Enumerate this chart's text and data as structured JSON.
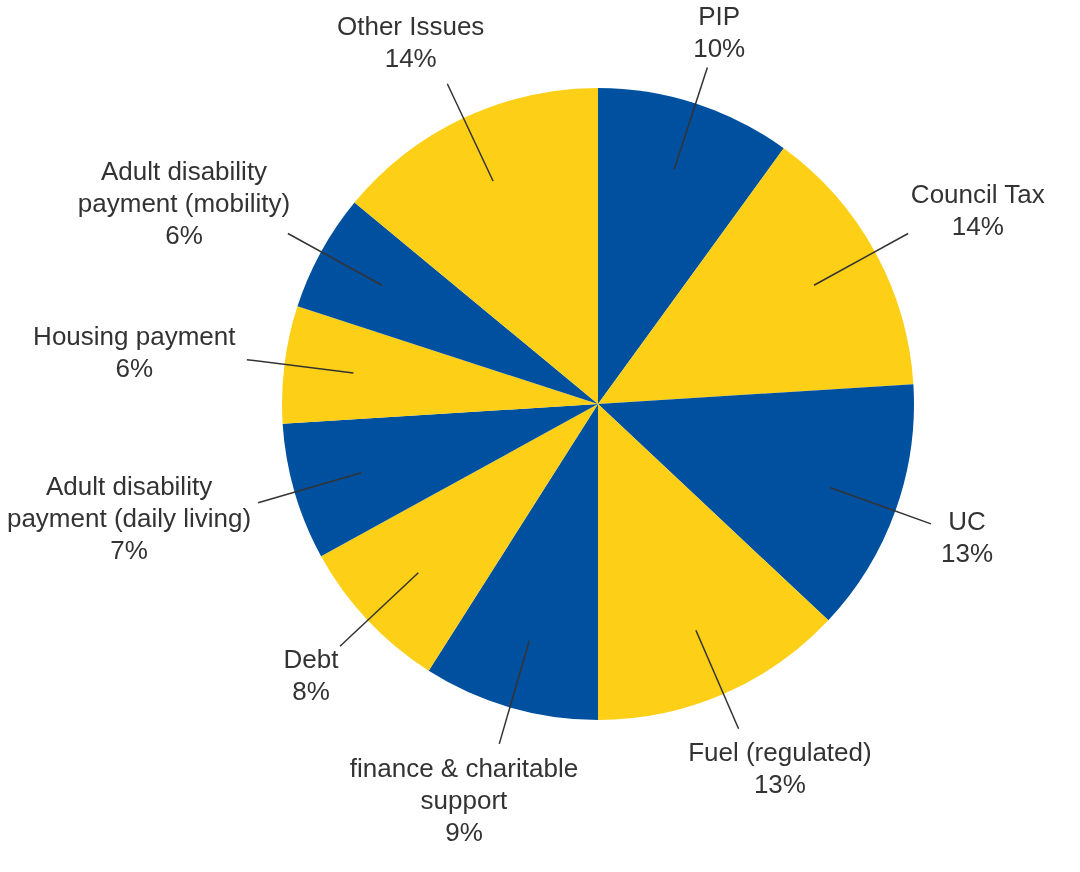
{
  "chart_data": {
    "type": "pie",
    "categories": [
      "PIP",
      "Council Tax",
      "UC",
      "Fuel (regulated)",
      "finance & charitable support",
      "Debt",
      "Adult disability payment (daily living)",
      "Housing payment",
      "Adult disability payment (mobility)",
      "Other Issues"
    ],
    "values": [
      10,
      14,
      13,
      13,
      9,
      8,
      7,
      6,
      6,
      14
    ],
    "value_labels": [
      "10%",
      "14%",
      "13%",
      "13%",
      "9%",
      "8%",
      "7%",
      "6%",
      "6%",
      "14%"
    ],
    "colors": [
      "#0050a0",
      "#fdd017",
      "#0050a0",
      "#fdd017",
      "#0050a0",
      "#fdd017",
      "#0050a0",
      "#fdd017",
      "#0050a0",
      "#fdd017"
    ],
    "legend": false
  }
}
